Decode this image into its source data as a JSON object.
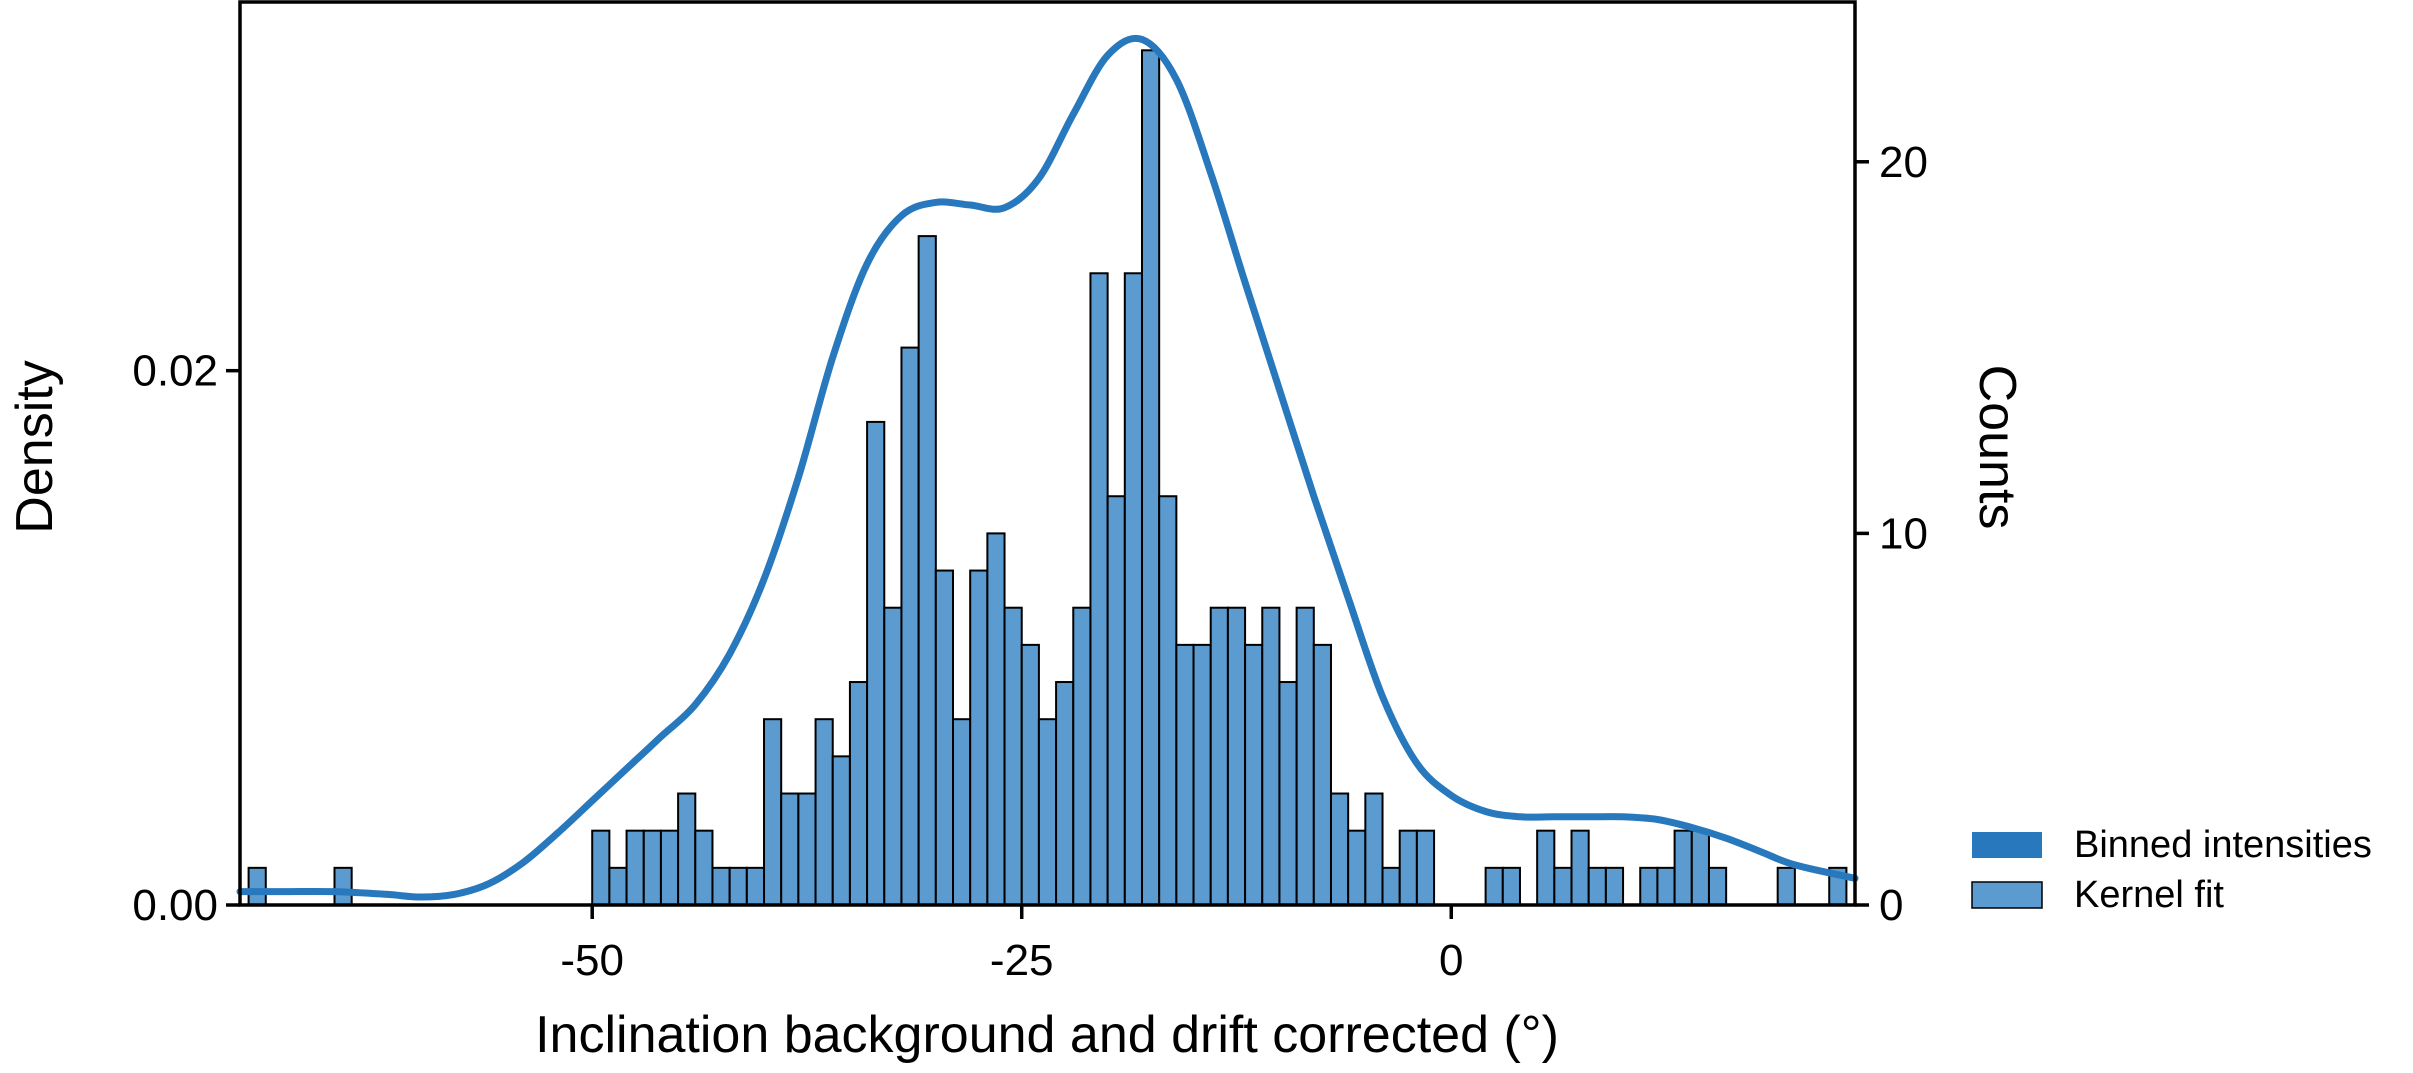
{
  "chart_data": {
    "type": "bar",
    "title": "",
    "xlabel": "Inclination background and drift corrected (°)",
    "ylabel_left": "Density",
    "ylabel_right": "Counts",
    "xlim": [
      -70.5,
      23.5
    ],
    "ylim_counts": [
      0,
      24.3
    ],
    "ylim_density": [
      0,
      0.0338
    ],
    "bin_width": 1,
    "x_ticks": [
      -50,
      -25,
      0
    ],
    "x_tick_labels": [
      "-50",
      "-25",
      "0"
    ],
    "y_left_ticks": [
      0.0,
      0.02
    ],
    "y_left_tick_labels": [
      "0.00",
      "0.02"
    ],
    "y_right_ticks": [
      0,
      10,
      20
    ],
    "y_right_tick_labels": [
      "0",
      "10",
      "20"
    ],
    "colors": {
      "bar_fill": "#5b9bd0",
      "bar_edge": "#000000",
      "kde_line": "#2878bd",
      "legend_binned": "#2878bd",
      "legend_kernel": "#5b9bd0"
    },
    "legend": {
      "placement": "lower-right outside",
      "entries": [
        "Binned intensities",
        "Kernel fit"
      ]
    },
    "histogram": {
      "bin_left": [
        -70,
        -65,
        -50,
        -49,
        -48,
        -47,
        -46,
        -45,
        -44,
        -43,
        -42,
        -41,
        -40,
        -39,
        -38,
        -37,
        -36,
        -35,
        -34,
        -33,
        -32,
        -31,
        -30,
        -29,
        -28,
        -27,
        -26,
        -25,
        -24,
        -23,
        -22,
        -21,
        -20,
        -19,
        -18,
        -17,
        -16,
        -15,
        -14,
        -13,
        -12,
        -11,
        -10,
        -9,
        -8,
        -7,
        -6,
        -5,
        -4,
        -3,
        -2,
        -1,
        2,
        3,
        5,
        6,
        7,
        8,
        9,
        11,
        12,
        13,
        14,
        15,
        19,
        22
      ],
      "counts": [
        1,
        1,
        2,
        1,
        2,
        2,
        2,
        3,
        2,
        1,
        1,
        1,
        5,
        3,
        3,
        5,
        4,
        6,
        13,
        8,
        15,
        18,
        9,
        5,
        9,
        10,
        8,
        7,
        5,
        6,
        8,
        17,
        11,
        17,
        23,
        11,
        7,
        7,
        8,
        8,
        7,
        8,
        6,
        8,
        7,
        3,
        2,
        3,
        1,
        2,
        2,
        0,
        1,
        1,
        2,
        1,
        2,
        1,
        1,
        1,
        1,
        2,
        2,
        1,
        1,
        1
      ]
    },
    "kde": {
      "x": [
        -70.5,
        -68,
        -65,
        -62,
        -60,
        -58,
        -56,
        -54,
        -52,
        -50,
        -48,
        -46,
        -44,
        -42,
        -40,
        -38,
        -36,
        -34,
        -32,
        -30,
        -28,
        -26,
        -24,
        -22,
        -20,
        -18,
        -16,
        -14,
        -12,
        -10,
        -8,
        -6,
        -4,
        -2,
        0,
        2,
        4,
        6,
        8,
        10,
        12,
        14,
        16,
        18,
        20,
        23.5
      ],
      "density": [
        0.0005,
        0.0005,
        0.0005,
        0.0004,
        0.0003,
        0.0004,
        0.0008,
        0.0016,
        0.0027,
        0.0039,
        0.0051,
        0.0063,
        0.0075,
        0.0094,
        0.0122,
        0.016,
        0.0205,
        0.024,
        0.0258,
        0.0263,
        0.0262,
        0.0261,
        0.0272,
        0.0296,
        0.0318,
        0.0324,
        0.0309,
        0.0274,
        0.0233,
        0.0193,
        0.0153,
        0.0115,
        0.0078,
        0.0053,
        0.0041,
        0.0035,
        0.0033,
        0.0033,
        0.0033,
        0.0033,
        0.0032,
        0.0029,
        0.0025,
        0.002,
        0.0015,
        0.001
      ]
    }
  }
}
